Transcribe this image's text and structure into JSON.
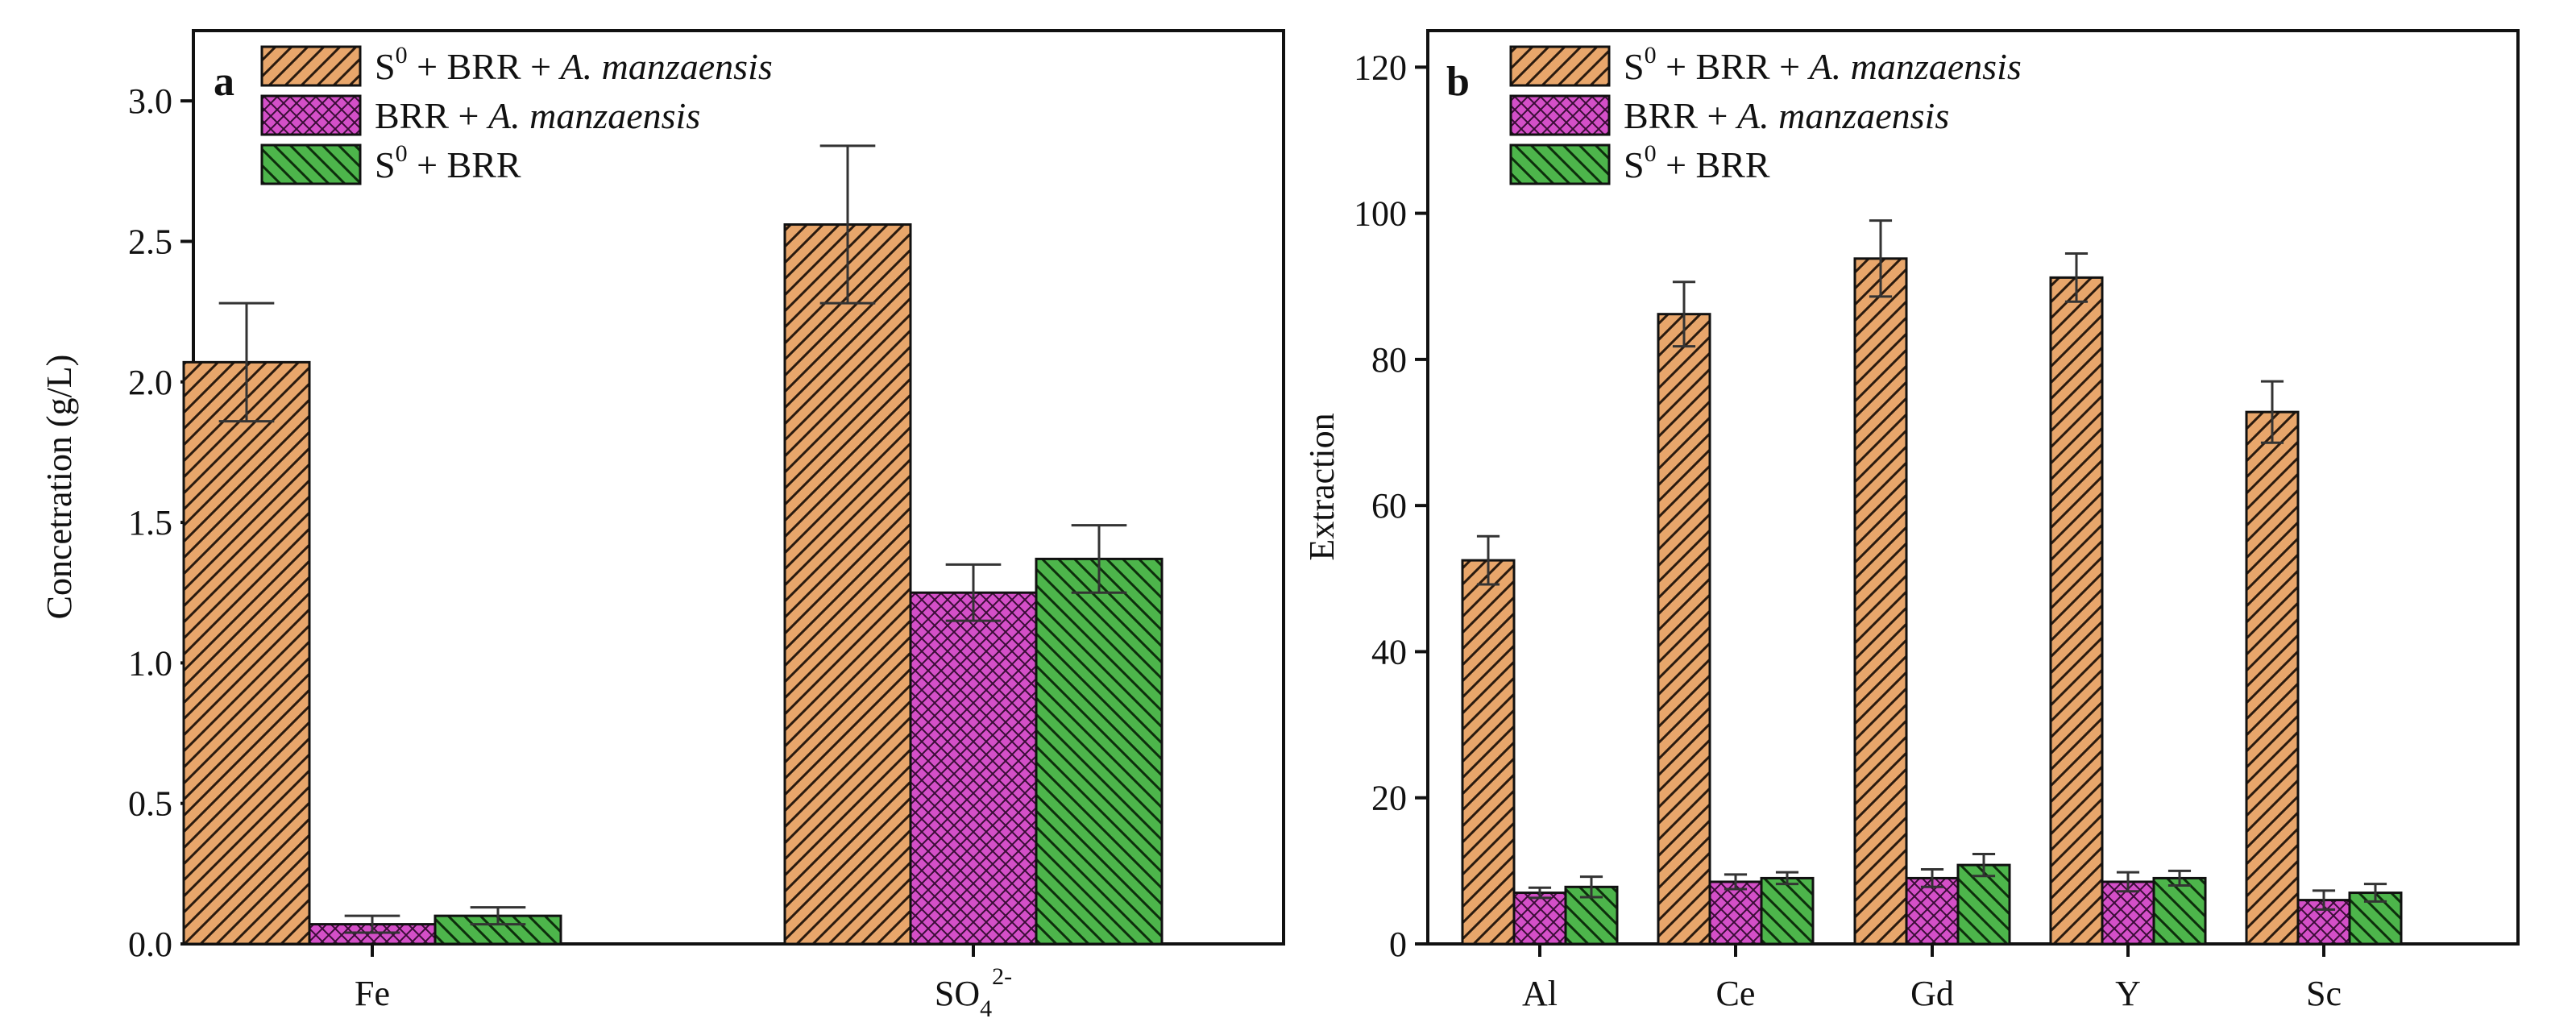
{
  "chart_data": [
    {
      "panel": "a",
      "type": "bar",
      "ylabel": "Concetration (g/L)",
      "xlabel": "",
      "ylim": [
        0,
        3.25
      ],
      "yticks": [
        "0.0",
        "0.5",
        "1.0",
        "1.5",
        "2.0",
        "2.5",
        "3.0"
      ],
      "categories": [
        {
          "base": "Fe",
          "sub": "",
          "sup": ""
        },
        {
          "base": "SO",
          "sub": "4",
          "sup": "2-"
        }
      ],
      "series": [
        {
          "key": "s0_brr_am",
          "values": [
            2.07,
            2.56
          ],
          "errors": [
            0.21,
            0.28
          ]
        },
        {
          "key": "brr_am",
          "values": [
            0.07,
            1.25
          ],
          "errors": [
            0.03,
            0.1
          ]
        },
        {
          "key": "s0_brr",
          "values": [
            0.1,
            1.37
          ],
          "errors": [
            0.03,
            0.12
          ]
        }
      ]
    },
    {
      "panel": "b",
      "type": "bar",
      "ylabel": "Extraction",
      "xlabel": "",
      "ylim": [
        0,
        125
      ],
      "yticks": [
        "0",
        "20",
        "40",
        "60",
        "80",
        "100",
        "120"
      ],
      "categories": [
        {
          "base": "Al",
          "sub": "",
          "sup": ""
        },
        {
          "base": "Ce",
          "sub": "",
          "sup": ""
        },
        {
          "base": "Gd",
          "sub": "",
          "sup": ""
        },
        {
          "base": "Y",
          "sub": "",
          "sup": ""
        },
        {
          "base": "Sc",
          "sub": "",
          "sup": ""
        }
      ],
      "series": [
        {
          "key": "s0_brr_am",
          "values": [
            52.5,
            86.2,
            93.8,
            91.2,
            72.8
          ],
          "errors": [
            3.3,
            4.4,
            5.2,
            3.3,
            4.2
          ]
        },
        {
          "key": "brr_am",
          "values": [
            7.0,
            8.5,
            9.0,
            8.5,
            6.0
          ],
          "errors": [
            0.7,
            1.0,
            1.2,
            1.3,
            1.3
          ]
        },
        {
          "key": "s0_brr",
          "values": [
            7.8,
            9.0,
            10.8,
            9.0,
            7.0
          ],
          "errors": [
            1.4,
            0.8,
            1.5,
            1.0,
            1.2
          ]
        }
      ]
    }
  ],
  "legend": [
    {
      "key": "s0_brr_am",
      "parts": [
        {
          "t": "S"
        },
        {
          "t": "0",
          "sup": true
        },
        {
          "t": " + BRR + "
        },
        {
          "t": "A. manzaensis",
          "italic": true
        }
      ],
      "fill": "#E8A66B",
      "stripe": "#2a1a0e",
      "pattern": "diag-back"
    },
    {
      "key": "brr_am",
      "parts": [
        {
          "t": "BRR + "
        },
        {
          "t": "A. manzaensis",
          "italic": true
        }
      ],
      "fill": "#D44FC8",
      "stripe": "#3a0d36",
      "pattern": "cross"
    },
    {
      "key": "s0_brr",
      "parts": [
        {
          "t": "S"
        },
        {
          "t": "0",
          "sup": true
        },
        {
          "t": " + BRR"
        }
      ],
      "fill": "#4DB54B",
      "stripe": "#0d2e0c",
      "pattern": "diag-fwd"
    }
  ]
}
